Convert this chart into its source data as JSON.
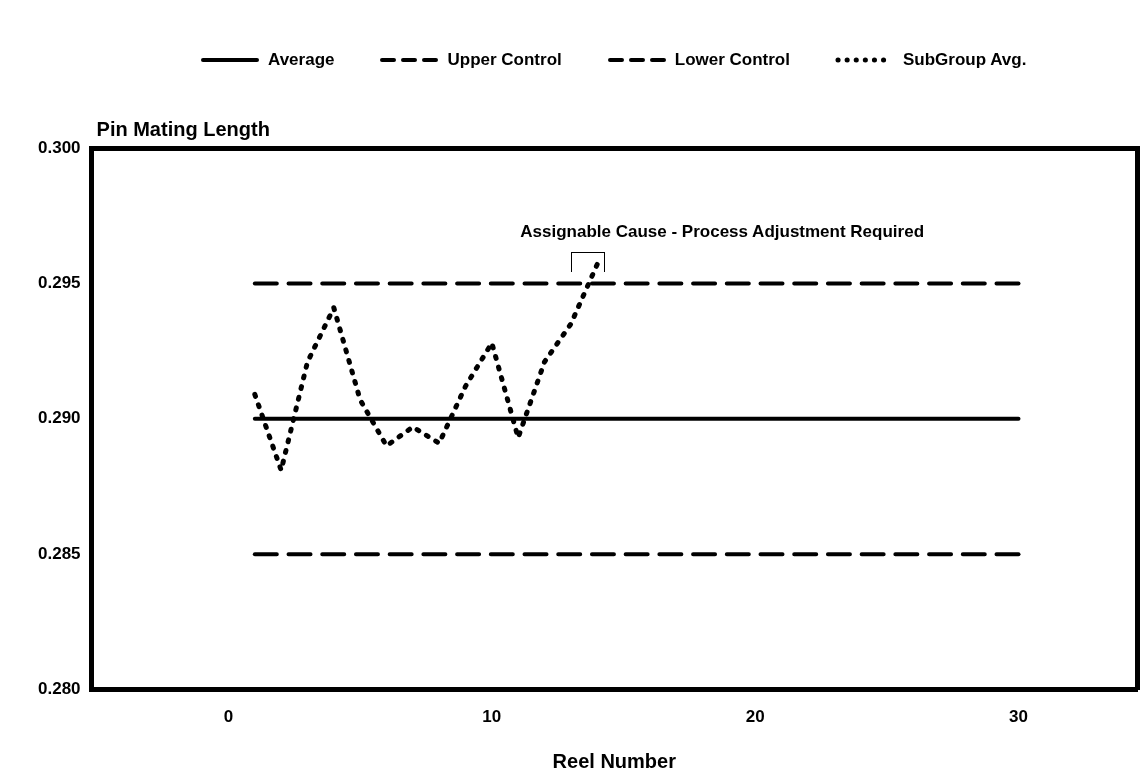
{
  "chart_data": {
    "type": "line",
    "ylabel": "Pin Mating Length",
    "xlabel": "Reel Number",
    "xlim": [
      -5.2,
      34.5
    ],
    "xticks": [
      0,
      10,
      20,
      30
    ],
    "ylim": [
      0.28,
      0.3
    ],
    "yticks": [
      {
        "value": 0.28,
        "label": "0.280"
      },
      {
        "value": 0.285,
        "label": "0.285"
      },
      {
        "value": 0.29,
        "label": "0.290"
      },
      {
        "value": 0.295,
        "label": "0.295"
      },
      {
        "value": 0.3,
        "label": "0.300"
      }
    ],
    "series": [
      {
        "name": "Average",
        "color": "#000000",
        "line_style": "solid",
        "x": [
          1,
          30
        ],
        "values": [
          0.29,
          0.29
        ]
      },
      {
        "name": "Upper Control",
        "color": "#000000",
        "line_style": "dashed",
        "x": [
          1,
          30
        ],
        "values": [
          0.295,
          0.295
        ]
      },
      {
        "name": "Lower Control",
        "color": "#000000",
        "line_style": "dashed",
        "x": [
          1,
          30
        ],
        "values": [
          0.285,
          0.285
        ]
      },
      {
        "name": "SubGroup Avg.",
        "color": "#000000",
        "line_style": "dotted",
        "x": [
          1,
          2,
          3,
          4,
          5,
          6,
          7,
          8,
          9,
          10,
          11,
          12,
          13,
          14
        ],
        "values": [
          0.2909,
          0.2881,
          0.2921,
          0.2941,
          0.2907,
          0.289,
          0.2897,
          0.2891,
          0.2912,
          0.2928,
          0.2893,
          0.2921,
          0.2935,
          0.2957
        ]
      }
    ],
    "annotations": [
      {
        "text": "Assignable Cause - Process Adjustment Required",
        "x": 14,
        "y": 0.2957
      }
    ],
    "grid": false,
    "legend": "top",
    "marker": "none"
  }
}
